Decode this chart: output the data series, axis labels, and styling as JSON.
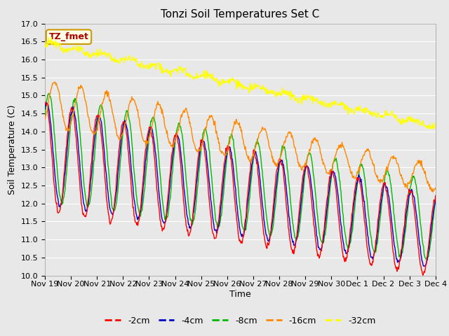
{
  "title": "Tonzi Soil Temperatures Set C",
  "xlabel": "Time",
  "ylabel": "Soil Temperature (C)",
  "ylim": [
    10.0,
    17.0
  ],
  "yticks": [
    10.0,
    10.5,
    11.0,
    11.5,
    12.0,
    12.5,
    13.0,
    13.5,
    14.0,
    14.5,
    15.0,
    15.5,
    16.0,
    16.5,
    17.0
  ],
  "series_colors": {
    "-2cm": "#ff0000",
    "-4cm": "#0000cc",
    "-8cm": "#00bb00",
    "-16cm": "#ff8800",
    "-32cm": "#ffff00"
  },
  "legend_labels": [
    "-2cm",
    "-4cm",
    "-8cm",
    "-16cm",
    "-32cm"
  ],
  "annotation_label": "TZ_fmet",
  "annotation_color": "#aa0000",
  "annotation_bg": "#ffffe8",
  "annotation_border": "#cc9900",
  "plot_bg_color": "#e8e8e8",
  "fig_bg_color": "#e8e8e8",
  "title_fontsize": 11,
  "axis_label_fontsize": 9,
  "tick_fontsize": 8,
  "legend_fontsize": 9
}
